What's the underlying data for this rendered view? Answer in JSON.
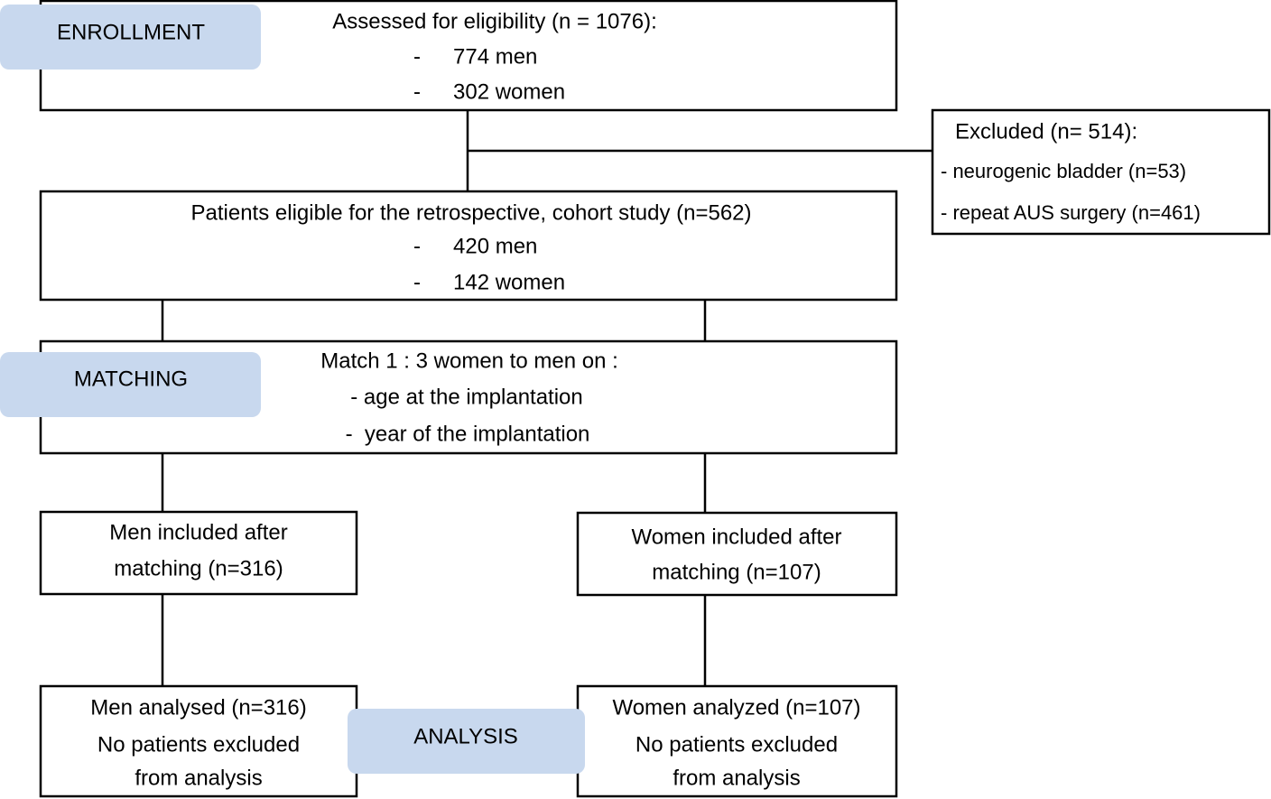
{
  "stages": {
    "enrollment": "ENROLLMENT",
    "matching": "MATCHING",
    "analysis": "ANALYSIS"
  },
  "assessed": {
    "title": "Assessed for eligibility (n = 1076):",
    "items": [
      {
        "bullet": "-",
        "text": "774 men"
      },
      {
        "bullet": "-",
        "text": "302 women"
      }
    ]
  },
  "excluded": {
    "title": "Excluded (n= 514):",
    "items": [
      "- neurogenic bladder (n=53)",
      "- repeat AUS surgery (n=461)"
    ]
  },
  "eligible": {
    "title": "Patients eligible for the retrospective, cohort study (n=562)",
    "items": [
      {
        "bullet": "-",
        "text": "420 men"
      },
      {
        "bullet": "-",
        "text": "142 women"
      }
    ]
  },
  "matching": {
    "title": "Match 1 : 3 women to men on :",
    "items": [
      "- age at the implantation",
      "-  year of the implantation"
    ]
  },
  "men_included": [
    "Men included after",
    "matching (n=316)"
  ],
  "women_included": [
    "Women included after",
    "matching (n=107)"
  ],
  "men_analysed": [
    "Men analysed (n=316)",
    "No patients excluded",
    "from analysis"
  ],
  "women_analyzed": [
    "Women analyzed (n=107)",
    "No patients excluded",
    "from analysis"
  ]
}
